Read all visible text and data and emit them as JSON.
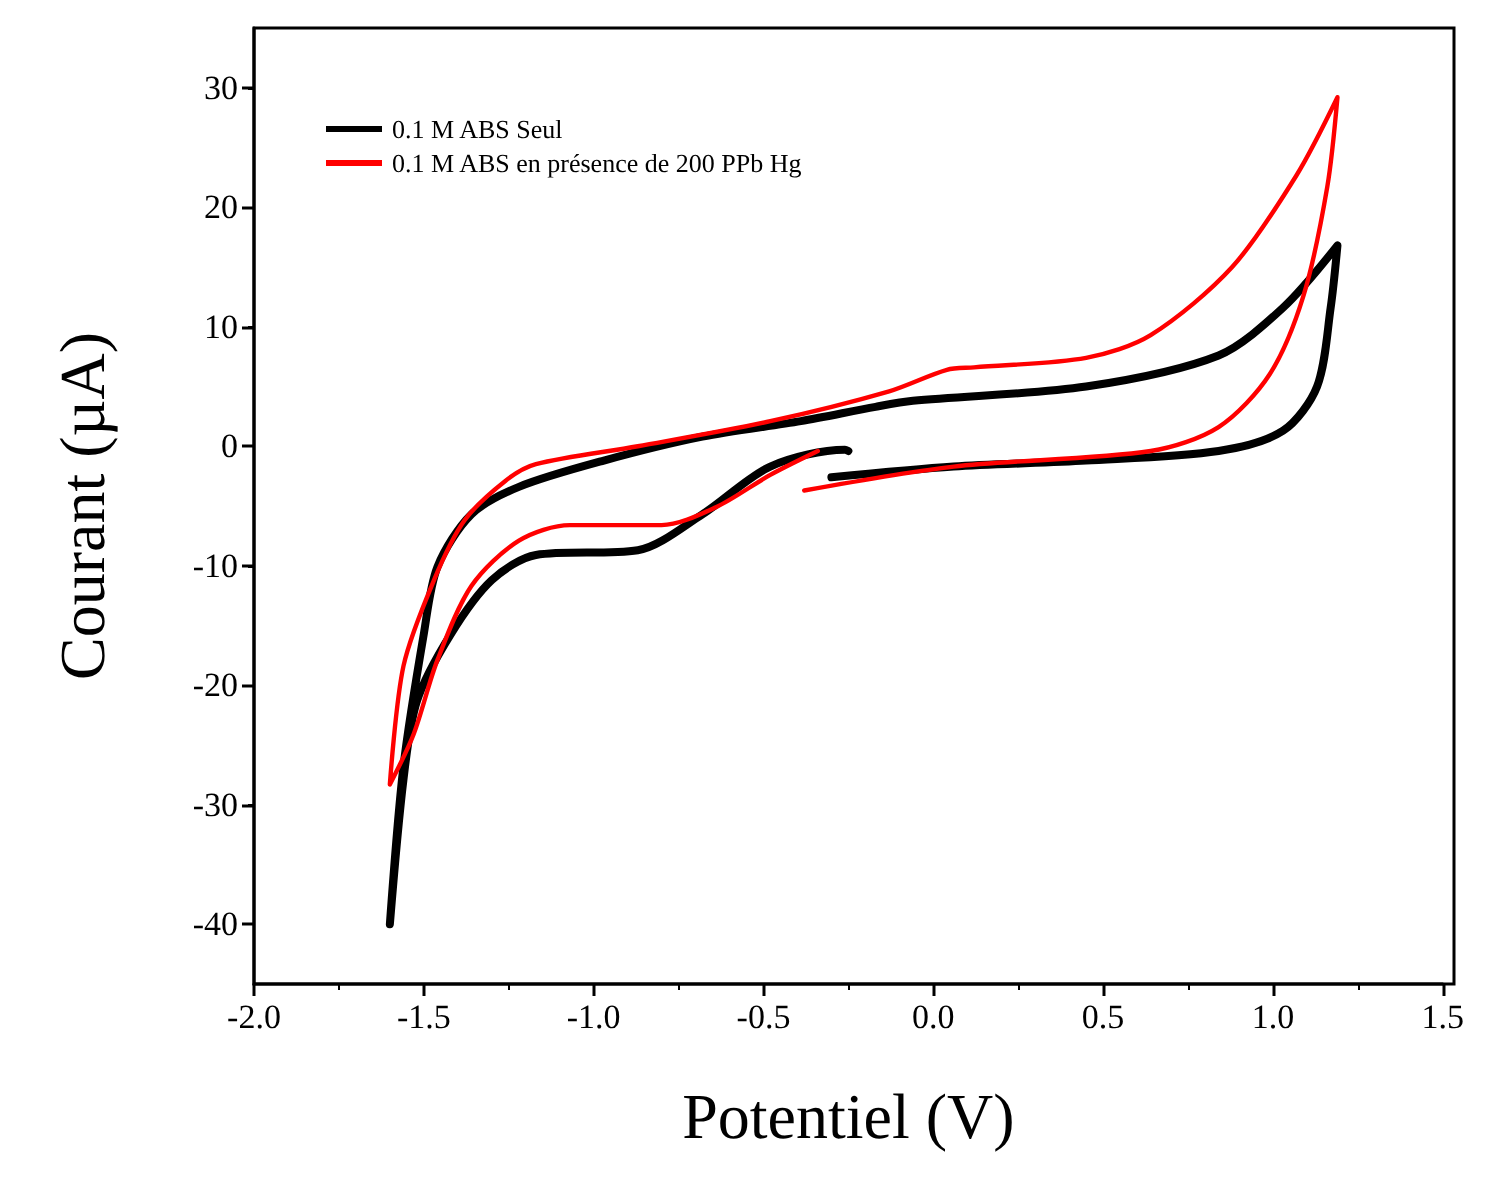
{
  "chart_data": {
    "type": "line",
    "xlabel": "Potentiel (V)",
    "ylabel": "Courant (µA)",
    "xlim": [
      -2.0,
      1.5
    ],
    "xticks": [
      {
        "value": -2,
        "label": "-2.0"
      },
      {
        "value": -1.5,
        "label": "-1.5"
      },
      {
        "value": -1,
        "label": "-1.0"
      },
      {
        "value": -0.5,
        "label": "-0.5"
      },
      {
        "value": 0,
        "label": "0.0"
      },
      {
        "value": 0.5,
        "label": "0.5"
      },
      {
        "value": 1,
        "label": "1.0"
      },
      {
        "value": 1.5,
        "label": "1.5"
      }
    ],
    "ylim": [
      -45,
      35
    ],
    "yticks": [
      -40,
      -30,
      -20,
      -10,
      0,
      10,
      20,
      30
    ],
    "grid": false,
    "legend": "top left",
    "marker": "none",
    "line_style": "solid",
    "series": [
      {
        "name": "0.1 M ABS Seul",
        "color": "#000000",
        "x": [
          -0.25,
          -0.26,
          -0.48,
          -0.68,
          -0.87,
          -1.17,
          -1.3,
          -1.42,
          -1.52,
          -1.56,
          -1.6,
          -1.56,
          -1.5,
          -1.46,
          -1.36,
          -1.22,
          -0.97,
          -0.68,
          -0.39,
          -0.17,
          -0.06,
          0.45,
          0.84,
          1.03,
          1.19,
          1.17,
          1.13,
          1.03,
          0.84,
          0.45,
          0.06,
          -0.3
        ],
        "values": [
          -0.4,
          -0.3,
          -1.7,
          -5.7,
          -8.7,
          -9.1,
          -11.2,
          -15.7,
          -21.3,
          -27.9,
          -40,
          -26.8,
          -15.7,
          -10.1,
          -5.7,
          -3.4,
          -1.2,
          0.8,
          2.1,
          3.3,
          3.8,
          5,
          7.6,
          11.6,
          16.8,
          11.6,
          5,
          1.3,
          -0.4,
          -1.2,
          -1.7,
          -2.6
        ]
      },
      {
        "name": "0.1 M ABS en présence de 200 PPb Hg",
        "color": "#ff0000",
        "x": [
          -0.38,
          0.06,
          0.64,
          0.84,
          0.99,
          1.09,
          1.16,
          1.19,
          1.07,
          0.88,
          0.64,
          0.45,
          0.12,
          0.04,
          -0.13,
          -0.48,
          -0.87,
          -1.17,
          -1.26,
          -1.38,
          -1.47,
          -1.56,
          -1.6,
          -1.53,
          -1.46,
          -1.36,
          -1.22,
          -1.07,
          -0.8,
          -0.64,
          -0.48,
          -0.34
        ],
        "values": [
          -3.7,
          -1.7,
          -0.4,
          1.6,
          6,
          12.6,
          21.7,
          29.2,
          22.7,
          15,
          9.3,
          7.4,
          6.6,
          6.4,
          4.6,
          2.1,
          0,
          -1.5,
          -2.9,
          -6.2,
          -11.2,
          -18.4,
          -28.3,
          -24.1,
          -17.9,
          -11.7,
          -7.9,
          -6.6,
          -6.6,
          -5.1,
          -2.4,
          -0.4
        ]
      }
    ]
  }
}
